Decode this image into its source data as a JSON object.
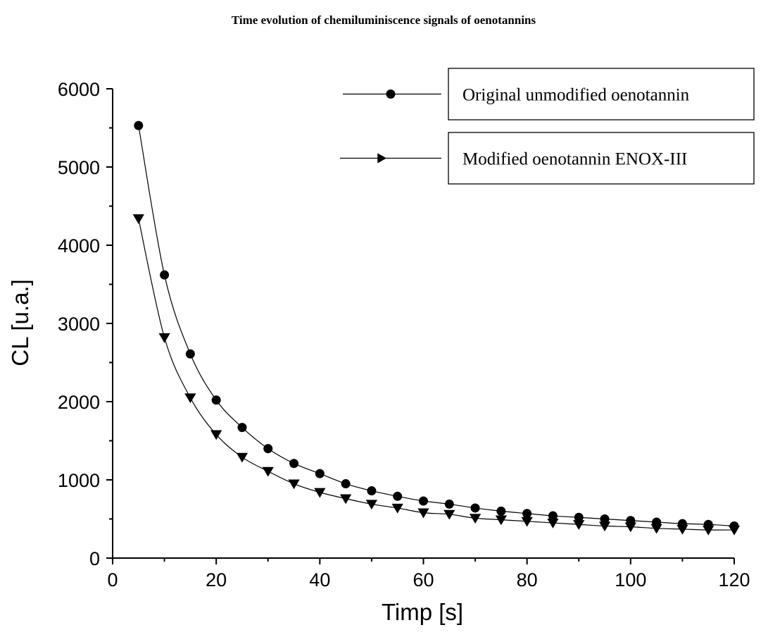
{
  "chart_data": {
    "type": "line",
    "title": "Time evolution of chemiluminiscence signals of oenotannins",
    "xlabel": "Timp [s]",
    "ylabel": "CL [u.a.]",
    "xlim": [
      0,
      120
    ],
    "ylim": [
      0,
      6000
    ],
    "xticks": [
      "0",
      "20",
      "40",
      "60",
      "80",
      "100",
      "120"
    ],
    "yticks": [
      "0",
      "1000",
      "2000",
      "3000",
      "4000",
      "5000",
      "6000"
    ],
    "grid": false,
    "legend_position": "top-right",
    "x": [
      5,
      10,
      15,
      20,
      25,
      30,
      35,
      40,
      45,
      50,
      55,
      60,
      65,
      70,
      75,
      80,
      85,
      90,
      95,
      100,
      105,
      110,
      115,
      120
    ],
    "series": [
      {
        "name": "Original unmodified oenotannin",
        "marker": "circle",
        "color": "#000000",
        "values": [
          5530,
          3620,
          2610,
          2020,
          1670,
          1400,
          1210,
          1080,
          950,
          860,
          790,
          730,
          690,
          640,
          600,
          570,
          540,
          520,
          500,
          480,
          460,
          440,
          430,
          410
        ]
      },
      {
        "name": "Modified oenotannin ENOX-III",
        "marker": "triangle-down",
        "color": "#000000",
        "values": [
          4340,
          2820,
          2050,
          1580,
          1290,
          1110,
          950,
          840,
          760,
          690,
          640,
          580,
          560,
          510,
          490,
          470,
          450,
          430,
          410,
          400,
          380,
          370,
          360,
          360
        ]
      }
    ]
  }
}
